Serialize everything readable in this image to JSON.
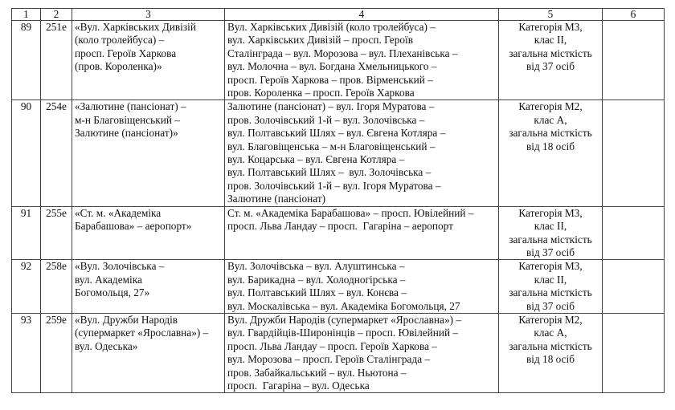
{
  "header": [
    "1",
    "2",
    "3",
    "4",
    "5",
    "6"
  ],
  "rows": [
    {
      "n": "89",
      "route": "251е",
      "name": [
        "«Вул. Харківських Дивізій",
        "(коло тролейбуса) –",
        "просп. Героїв Харкова",
        "(пров. Короленка)»"
      ],
      "path": [
        "Вул. Харківських Дивізій (коло тролейбуса) –",
        "вул. Харківських Дивізій – просп. Героїв",
        "Сталінграда – вул. Морозова – вул. Плеханівська –",
        "вул. Молочна – вул. Богдана Хмельницького –",
        "просп. Героїв Харкова – пров. Вірменський –",
        "пров. Короленка – просп. Героїв Харкова"
      ],
      "cat": [
        "Категорія М3,",
        "клас ІІ,",
        "загальна місткість",
        "від 37 осіб"
      ],
      "note": ""
    },
    {
      "n": "90",
      "route": "254е",
      "name": [
        "«Залютине (пансіонат) –",
        "м-н Благовіщенський –",
        "Залютине (пансіонат)»"
      ],
      "path": [
        "Залютине (пансіонат) – вул. Ігоря Муратова –",
        "пров. Золочівський 1-й – вул. Золочівська –",
        "вул. Полтавський Шлях – вул. Євгена Котляра –",
        "вул. Благовіщенська – м-н Благовіщенський –",
        "вул. Коцарська – вул. Євгена Котляра –",
        "вул. Полтавський Шлях –  вул. Золочівська –",
        "пров. Золочівський 1-й – вул. Ігоря Муратова –",
        "Залютине (пансіонат)"
      ],
      "cat": [
        "Категорія М2,",
        "клас А,",
        "загальна місткість",
        "від 18 осіб"
      ],
      "note": ""
    },
    {
      "n": "91",
      "route": "255е",
      "name": [
        "«Ст. м. «Академіка",
        "Барабашова» – аеропорт»"
      ],
      "path": [
        "Ст. м. «Академіка Барабашова» – просп. Ювілейний –",
        "просп. Льва Ландау – просп.  Гагаріна – аеропорт"
      ],
      "cat": [
        "Категорія М3,",
        "клас ІІ,",
        "загальна місткість",
        "від 37 осіб"
      ],
      "note": ""
    },
    {
      "n": "92",
      "route": "258е",
      "name": [
        "«Вул. Золочівська –",
        "вул. Академіка",
        "Богомольця, 27»"
      ],
      "path": [
        "Вул. Золочівська – вул. Алуштинська –",
        "вул. Барикадна – вул. Холодногірська –",
        "вул. Полтавський Шлях – вул. Конєва –",
        "вул. Москалівська – вул. Академіка Богомольця, 27"
      ],
      "cat": [
        "Категорія М3,",
        "клас ІІ,",
        "загальна місткість",
        "від 37 осіб"
      ],
      "note": ""
    },
    {
      "n": "93",
      "route": "259е",
      "name": [
        "«Вул. Дружби Народів",
        "(супермаркет «Ярославна») –",
        "вул. Одеська»"
      ],
      "path": [
        "Вул. Дружби Народів (супермаркет «Ярославна») –",
        "вул. Гвардійців-Широнінців – просп. Ювілейний –",
        "просп. Льва Ландау – просп. Героїв Харкова –",
        "вул. Морозова – просп. Героїв Сталінграда –",
        "пров. Забайкальський – вул. Ньютона –",
        "просп.  Гагаріна – вул. Одеська"
      ],
      "cat": [
        "Категорія М2,",
        "клас А,",
        "загальна місткість",
        "від 18 осіб"
      ],
      "note": ""
    }
  ]
}
